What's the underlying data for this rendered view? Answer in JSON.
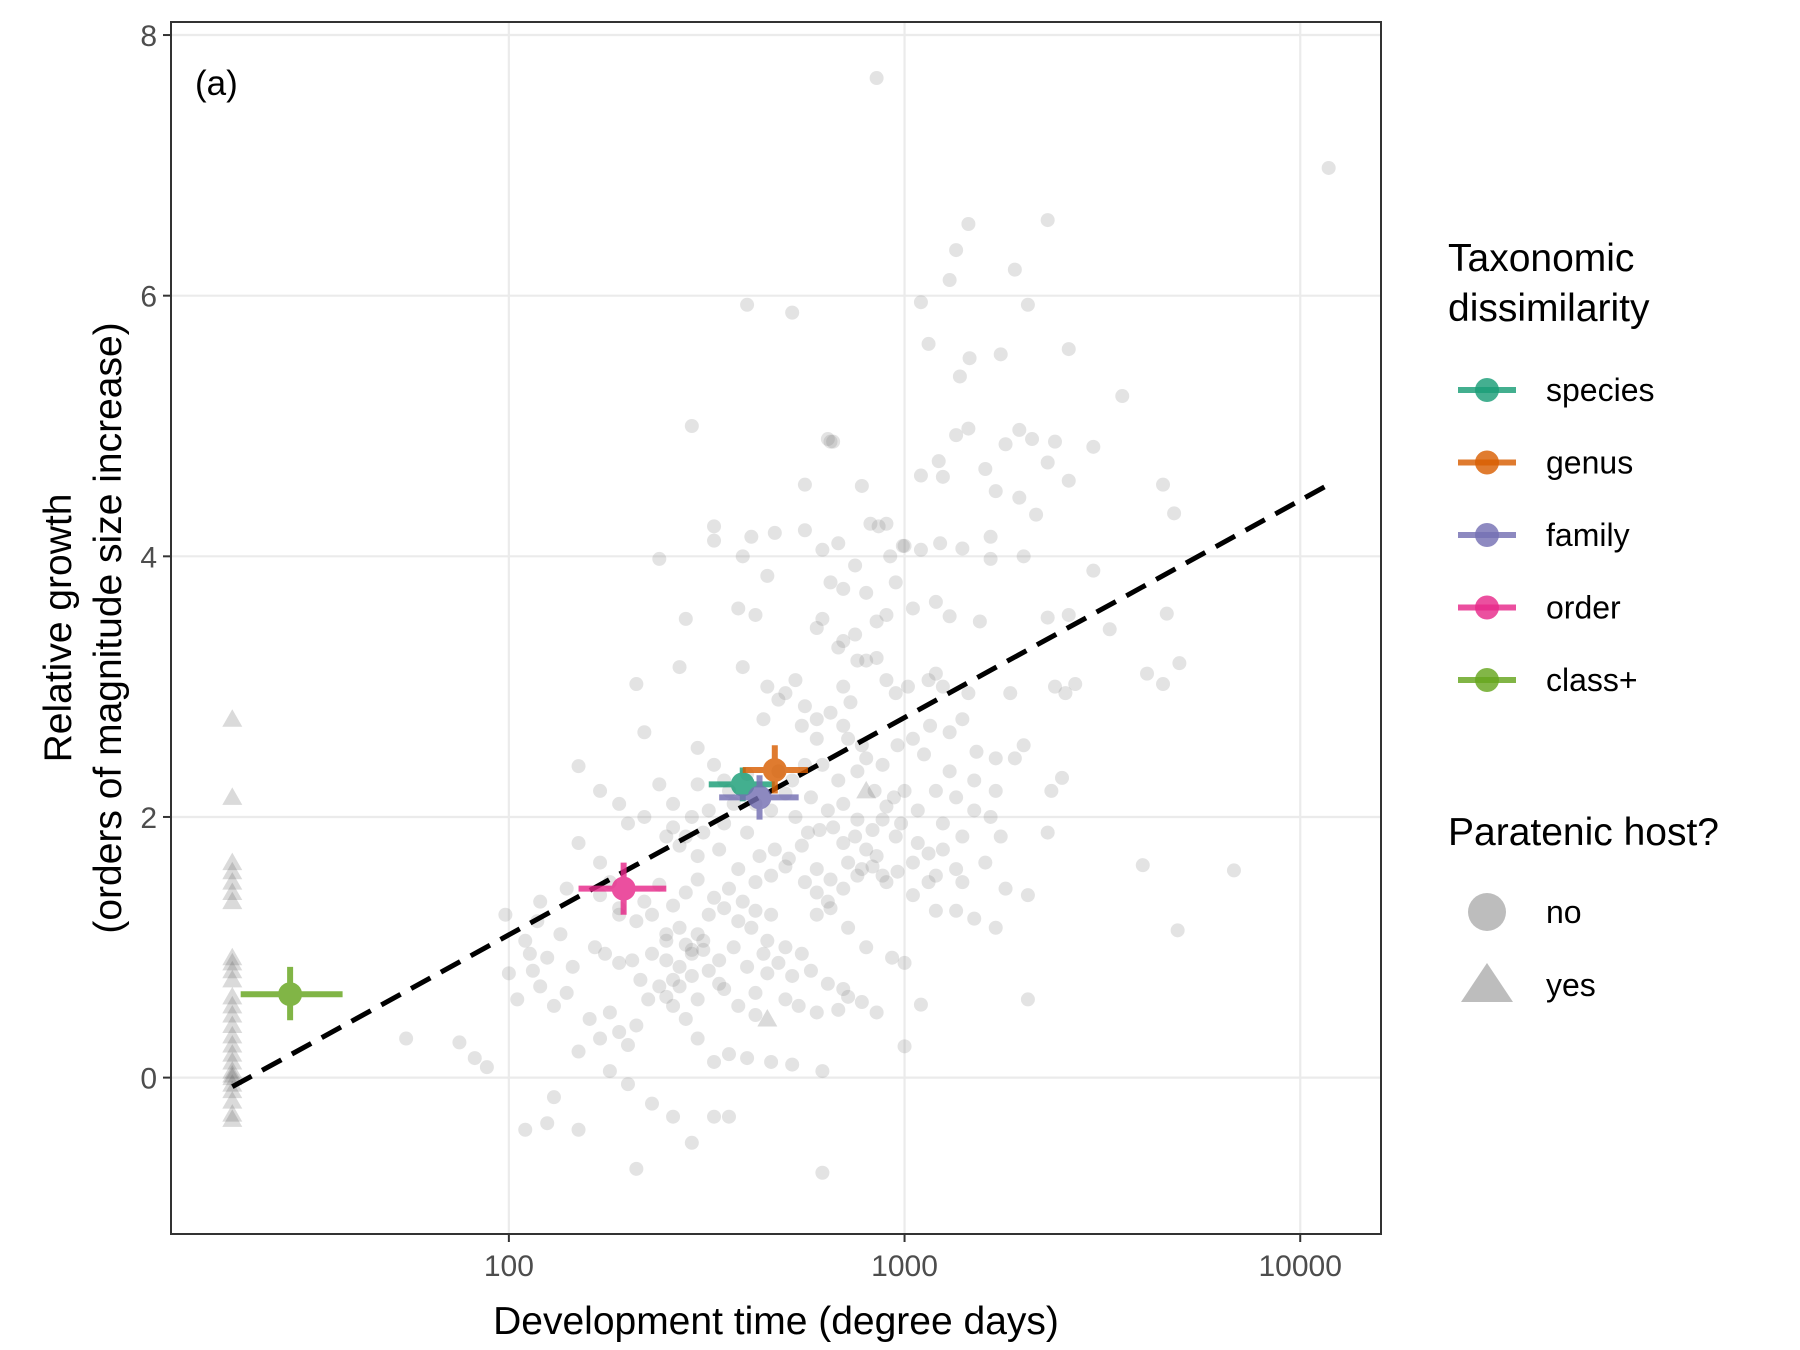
{
  "chart_data": {
    "type": "scatter",
    "panel_label": "(a)",
    "xlabel": "Development time (degree days)",
    "ylabel_line1": "Relative growth",
    "ylabel_line2": "(orders of magnitude size increase)",
    "x_scale": "log10",
    "xlim": [
      14,
      16000
    ],
    "ylim": [
      -1.2,
      8.1
    ],
    "x_ticks": [
      100,
      1000,
      10000
    ],
    "x_tick_labels": [
      "100",
      "1000",
      "10000"
    ],
    "y_ticks": [
      0,
      2,
      4,
      6,
      8
    ],
    "y_tick_labels": [
      "0",
      "2",
      "4",
      "6",
      "8"
    ],
    "grid": true,
    "legend_placement": "right",
    "trend_line": {
      "style": "dashed",
      "color": "#000000",
      "x": [
        20,
        11800
      ],
      "y": [
        -0.07,
        4.55
      ]
    },
    "legend_color": {
      "title_line1": "Taxonomic",
      "title_line2": "dissimilarity",
      "entries": [
        {
          "label": "species",
          "color": "#1b9e77"
        },
        {
          "label": "genus",
          "color": "#d95f02"
        },
        {
          "label": "family",
          "color": "#7570b3"
        },
        {
          "label": "order",
          "color": "#e7298a"
        },
        {
          "label": "class+",
          "color": "#66a61e"
        }
      ]
    },
    "legend_shape": {
      "title": "Paratenic host?",
      "entries": [
        {
          "label": "no",
          "shape": "circle"
        },
        {
          "label": "yes",
          "shape": "triangle"
        }
      ]
    },
    "summary_points": [
      {
        "group": "species",
        "x": 390,
        "y": 2.25,
        "x_lo": 320,
        "x_hi": 470,
        "y_lo": 2.12,
        "y_hi": 2.38
      },
      {
        "group": "genus",
        "x": 470,
        "y": 2.36,
        "x_lo": 390,
        "x_hi": 570,
        "y_lo": 2.18,
        "y_hi": 2.55
      },
      {
        "group": "family",
        "x": 430,
        "y": 2.15,
        "x_lo": 340,
        "x_hi": 540,
        "y_lo": 1.98,
        "y_hi": 2.32
      },
      {
        "group": "order",
        "x": 195,
        "y": 1.45,
        "x_lo": 150,
        "x_hi": 250,
        "y_lo": 1.25,
        "y_hi": 1.65
      },
      {
        "group": "class+",
        "x": 28,
        "y": 0.64,
        "x_lo": 21,
        "x_hi": 38,
        "y_lo": 0.44,
        "y_hi": 0.85
      }
    ],
    "points_paratenic_no": [
      [
        850,
        7.67
      ],
      [
        11800,
        6.98
      ],
      [
        1450,
        6.55
      ],
      [
        2300,
        6.58
      ],
      [
        1350,
        6.35
      ],
      [
        1300,
        6.12
      ],
      [
        1900,
        6.2
      ],
      [
        400,
        5.93
      ],
      [
        520,
        5.87
      ],
      [
        2050,
        5.93
      ],
      [
        1100,
        5.95
      ],
      [
        1150,
        5.63
      ],
      [
        2600,
        5.59
      ],
      [
        1460,
        5.52
      ],
      [
        1750,
        5.55
      ],
      [
        1380,
        5.38
      ],
      [
        3550,
        5.23
      ],
      [
        290,
        5.0
      ],
      [
        650,
        4.88
      ],
      [
        640,
        4.9
      ],
      [
        1350,
        4.93
      ],
      [
        1450,
        4.98
      ],
      [
        1950,
        4.97
      ],
      [
        2100,
        4.9
      ],
      [
        2400,
        4.88
      ],
      [
        3000,
        4.84
      ],
      [
        1800,
        4.86
      ],
      [
        1220,
        4.73
      ],
      [
        2300,
        4.72
      ],
      [
        1600,
        4.67
      ],
      [
        1100,
        4.62
      ],
      [
        1250,
        4.61
      ],
      [
        1700,
        4.5
      ],
      [
        2600,
        4.58
      ],
      [
        4500,
        4.55
      ],
      [
        560,
        4.55
      ],
      [
        780,
        4.54
      ],
      [
        1950,
        4.45
      ],
      [
        820,
        4.25
      ],
      [
        900,
        4.25
      ],
      [
        330,
        4.23
      ],
      [
        410,
        4.15
      ],
      [
        470,
        4.18
      ],
      [
        560,
        4.2
      ],
      [
        1000,
        4.08
      ],
      [
        1100,
        4.05
      ],
      [
        1230,
        4.1
      ],
      [
        1650,
        4.15
      ],
      [
        4800,
        4.33
      ],
      [
        2150,
        4.32
      ],
      [
        680,
        4.1
      ],
      [
        620,
        4.05
      ],
      [
        920,
        4.0
      ],
      [
        330,
        4.12
      ],
      [
        390,
        4.0
      ],
      [
        750,
        3.93
      ],
      [
        1400,
        4.06
      ],
      [
        1650,
        3.98
      ],
      [
        2000,
        4.0
      ],
      [
        3000,
        3.89
      ],
      [
        450,
        3.85
      ],
      [
        800,
        3.72
      ],
      [
        950,
        3.8
      ],
      [
        240,
        3.98
      ],
      [
        650,
        3.8
      ],
      [
        700,
        3.75
      ],
      [
        850,
        3.5
      ],
      [
        900,
        3.55
      ],
      [
        1050,
        3.6
      ],
      [
        1200,
        3.65
      ],
      [
        1300,
        3.54
      ],
      [
        1550,
        3.5
      ],
      [
        2300,
        3.53
      ],
      [
        2600,
        3.55
      ],
      [
        4600,
        3.56
      ],
      [
        3300,
        3.44
      ],
      [
        380,
        3.6
      ],
      [
        420,
        3.55
      ],
      [
        600,
        3.45
      ],
      [
        620,
        3.52
      ],
      [
        680,
        3.3
      ],
      [
        700,
        3.35
      ],
      [
        750,
        3.4
      ],
      [
        760,
        3.2
      ],
      [
        800,
        3.2
      ],
      [
        850,
        3.22
      ],
      [
        900,
        3.05
      ],
      [
        950,
        2.95
      ],
      [
        1020,
        3.0
      ],
      [
        1150,
        3.05
      ],
      [
        1200,
        3.1
      ],
      [
        1250,
        3.0
      ],
      [
        1450,
        2.95
      ],
      [
        1850,
        2.95
      ],
      [
        2400,
        3.0
      ],
      [
        2550,
        2.95
      ],
      [
        2700,
        3.02
      ],
      [
        4100,
        3.1
      ],
      [
        4500,
        3.02
      ],
      [
        4950,
        3.18
      ],
      [
        280,
        3.52
      ],
      [
        270,
        3.15
      ],
      [
        210,
        3.02
      ],
      [
        390,
        3.15
      ],
      [
        450,
        3.0
      ],
      [
        480,
        2.9
      ],
      [
        530,
        3.05
      ],
      [
        560,
        2.85
      ],
      [
        600,
        2.75
      ],
      [
        650,
        2.8
      ],
      [
        700,
        2.7
      ],
      [
        720,
        2.6
      ],
      [
        780,
        2.55
      ],
      [
        800,
        2.45
      ],
      [
        880,
        2.4
      ],
      [
        960,
        2.55
      ],
      [
        1050,
        2.6
      ],
      [
        1120,
        2.48
      ],
      [
        1160,
        2.7
      ],
      [
        1300,
        2.65
      ],
      [
        1400,
        2.75
      ],
      [
        1520,
        2.5
      ],
      [
        1700,
        2.45
      ],
      [
        1900,
        2.45
      ],
      [
        2000,
        2.55
      ],
      [
        2500,
        2.3
      ],
      [
        2350,
        2.2
      ],
      [
        2300,
        1.88
      ],
      [
        220,
        2.65
      ],
      [
        300,
        2.53
      ],
      [
        240,
        2.25
      ],
      [
        260,
        2.1
      ],
      [
        290,
        2.0
      ],
      [
        320,
        2.05
      ],
      [
        360,
        2.2
      ],
      [
        400,
        2.33
      ],
      [
        420,
        2.1
      ],
      [
        460,
        2.05
      ],
      [
        500,
        2.18
      ],
      [
        530,
        2.0
      ],
      [
        570,
        1.88
      ],
      [
        610,
        1.9
      ],
      [
        660,
        1.92
      ],
      [
        700,
        1.8
      ],
      [
        750,
        1.85
      ],
      [
        800,
        1.75
      ],
      [
        850,
        1.7
      ],
      [
        950,
        1.85
      ],
      [
        1080,
        2.05
      ],
      [
        1200,
        2.2
      ],
      [
        1250,
        1.95
      ],
      [
        1350,
        2.15
      ],
      [
        1500,
        2.05
      ],
      [
        1650,
        2.0
      ],
      [
        1750,
        1.85
      ],
      [
        1600,
        1.65
      ],
      [
        1350,
        1.6
      ],
      [
        1200,
        1.55
      ],
      [
        1400,
        1.5
      ],
      [
        1800,
        1.45
      ],
      [
        2050,
        1.4
      ],
      [
        1350,
        1.28
      ],
      [
        1500,
        1.22
      ],
      [
        1700,
        1.15
      ],
      [
        150,
        2.39
      ],
      [
        170,
        2.2
      ],
      [
        190,
        2.1
      ],
      [
        200,
        1.95
      ],
      [
        220,
        2.0
      ],
      [
        250,
        1.85
      ],
      [
        270,
        1.78
      ],
      [
        300,
        1.7
      ],
      [
        340,
        1.75
      ],
      [
        380,
        1.6
      ],
      [
        420,
        1.5
      ],
      [
        460,
        1.55
      ],
      [
        500,
        1.62
      ],
      [
        560,
        1.5
      ],
      [
        600,
        1.42
      ],
      [
        640,
        1.35
      ],
      [
        700,
        1.45
      ],
      [
        760,
        1.55
      ],
      [
        830,
        1.62
      ],
      [
        900,
        1.5
      ],
      [
        960,
        1.58
      ],
      [
        1050,
        1.4
      ],
      [
        1200,
        1.28
      ],
      [
        120,
        1.35
      ],
      [
        140,
        1.45
      ],
      [
        150,
        1.8
      ],
      [
        170,
        1.65
      ],
      [
        180,
        1.5
      ],
      [
        190,
        1.3
      ],
      [
        210,
        1.2
      ],
      [
        230,
        1.25
      ],
      [
        250,
        1.1
      ],
      [
        270,
        1.15
      ],
      [
        290,
        0.98
      ],
      [
        310,
        1.05
      ],
      [
        340,
        0.9
      ],
      [
        370,
        1.0
      ],
      [
        400,
        0.85
      ],
      [
        440,
        0.95
      ],
      [
        480,
        0.88
      ],
      [
        520,
        0.78
      ],
      [
        580,
        0.82
      ],
      [
        640,
        0.72
      ],
      [
        700,
        0.68
      ],
      [
        780,
        0.58
      ],
      [
        850,
        0.5
      ],
      [
        930,
        0.92
      ],
      [
        1000,
        0.88
      ],
      [
        1100,
        0.56
      ],
      [
        2050,
        0.6
      ],
      [
        1000,
        0.24
      ],
      [
        6800,
        1.59
      ],
      [
        4000,
        1.63
      ],
      [
        4900,
        1.13
      ],
      [
        98,
        1.25
      ],
      [
        110,
        1.05
      ],
      [
        115,
        0.82
      ],
      [
        120,
        0.7
      ],
      [
        130,
        0.55
      ],
      [
        140,
        0.65
      ],
      [
        160,
        0.45
      ],
      [
        170,
        0.3
      ],
      [
        180,
        0.5
      ],
      [
        190,
        0.35
      ],
      [
        200,
        0.25
      ],
      [
        210,
        0.4
      ],
      [
        225,
        0.6
      ],
      [
        240,
        0.7
      ],
      [
        260,
        0.55
      ],
      [
        280,
        0.45
      ],
      [
        300,
        0.3
      ],
      [
        330,
        0.12
      ],
      [
        360,
        0.18
      ],
      [
        400,
        0.15
      ],
      [
        460,
        0.12
      ],
      [
        520,
        0.1
      ],
      [
        620,
        0.05
      ],
      [
        150,
        0.2
      ],
      [
        180,
        0.05
      ],
      [
        200,
        -0.05
      ],
      [
        230,
        -0.2
      ],
      [
        260,
        -0.3
      ],
      [
        290,
        -0.5
      ],
      [
        330,
        -0.3
      ],
      [
        360,
        -0.3
      ],
      [
        110,
        -0.4
      ],
      [
        125,
        -0.35
      ],
      [
        150,
        -0.4
      ],
      [
        130,
        -0.15
      ],
      [
        210,
        -0.7
      ],
      [
        620,
        -0.73
      ],
      [
        55,
        0.3
      ],
      [
        75,
        0.27
      ],
      [
        82,
        0.15
      ],
      [
        88,
        0.08
      ],
      [
        100,
        0.8
      ],
      [
        105,
        0.6
      ],
      [
        113,
        0.95
      ],
      [
        118,
        1.2
      ],
      [
        125,
        0.92
      ],
      [
        135,
        1.1
      ],
      [
        145,
        0.85
      ],
      [
        165,
        1.0
      ],
      [
        175,
        0.95
      ],
      [
        190,
        0.88
      ],
      [
        205,
        0.9
      ],
      [
        215,
        0.75
      ],
      [
        230,
        0.95
      ],
      [
        250,
        0.9
      ],
      [
        270,
        0.85
      ],
      [
        290,
        0.95
      ],
      [
        300,
        1.1
      ],
      [
        320,
        1.25
      ],
      [
        350,
        1.3
      ],
      [
        380,
        1.2
      ],
      [
        410,
        1.15
      ],
      [
        450,
        1.05
      ],
      [
        500,
        1.0
      ],
      [
        550,
        0.95
      ],
      [
        600,
        1.25
      ],
      [
        650,
        1.3
      ],
      [
        720,
        1.15
      ],
      [
        800,
        1.0
      ],
      [
        450,
        0.8
      ],
      [
        500,
        0.6
      ],
      [
        540,
        0.55
      ],
      [
        600,
        0.5
      ],
      [
        680,
        0.52
      ],
      [
        720,
        0.62
      ],
      [
        250,
        0.62
      ],
      [
        270,
        0.7
      ],
      [
        300,
        0.6
      ],
      [
        340,
        0.72
      ],
      [
        380,
        0.55
      ],
      [
        420,
        0.65
      ],
      [
        660,
        4.88
      ],
      [
        860,
        4.23
      ],
      [
        990,
        4.08
      ],
      [
        700,
        3.0
      ],
      [
        730,
        2.88
      ],
      [
        600,
        2.6
      ],
      [
        500,
        2.95
      ],
      [
        440,
        2.75
      ],
      [
        550,
        2.7
      ],
      [
        620,
        2.4
      ],
      [
        680,
        2.28
      ],
      [
        760,
        2.35
      ],
      [
        840,
        2.2
      ],
      [
        900,
        2.08
      ],
      [
        980,
        1.95
      ],
      [
        1080,
        1.8
      ],
      [
        1150,
        1.72
      ],
      [
        1250,
        1.75
      ],
      [
        1400,
        1.85
      ],
      [
        560,
        2.4
      ],
      [
        480,
        2.35
      ],
      [
        520,
        2.28
      ],
      [
        580,
        2.15
      ],
      [
        640,
        2.05
      ],
      [
        700,
        2.1
      ],
      [
        760,
        1.98
      ],
      [
        830,
        1.9
      ],
      [
        880,
        1.98
      ],
      [
        940,
        2.15
      ],
      [
        1000,
        2.2
      ],
      [
        1300,
        2.35
      ],
      [
        1500,
        2.28
      ],
      [
        1700,
        2.2
      ],
      [
        330,
        2.4
      ],
      [
        350,
        2.28
      ],
      [
        370,
        2.1
      ],
      [
        300,
        2.25
      ],
      [
        260,
        1.92
      ],
      [
        280,
        1.85
      ],
      [
        310,
        1.88
      ],
      [
        350,
        1.95
      ],
      [
        400,
        1.88
      ],
      [
        430,
        1.7
      ],
      [
        470,
        1.75
      ],
      [
        510,
        1.68
      ],
      [
        550,
        1.78
      ],
      [
        600,
        1.6
      ],
      [
        650,
        1.52
      ],
      [
        720,
        1.65
      ],
      [
        780,
        1.6
      ],
      [
        880,
        1.55
      ],
      [
        1050,
        1.65
      ],
      [
        1150,
        1.5
      ],
      [
        170,
        1.4
      ],
      [
        190,
        1.25
      ],
      [
        220,
        1.35
      ],
      [
        240,
        1.48
      ],
      [
        260,
        1.32
      ],
      [
        280,
        1.42
      ],
      [
        300,
        1.52
      ],
      [
        330,
        1.38
      ],
      [
        360,
        1.45
      ],
      [
        390,
        1.35
      ],
      [
        420,
        1.28
      ],
      [
        460,
        1.25
      ],
      [
        250,
        1.05
      ],
      [
        280,
        1.02
      ],
      [
        310,
        0.98
      ],
      [
        260,
        0.75
      ],
      [
        290,
        0.78
      ],
      [
        320,
        0.82
      ],
      [
        350,
        0.68
      ],
      [
        420,
        0.48
      ]
    ],
    "points_paratenic_yes": [
      [
        20,
        2.75
      ],
      [
        20,
        2.15
      ],
      [
        20,
        1.65
      ],
      [
        20,
        1.58
      ],
      [
        20,
        1.5
      ],
      [
        20,
        1.42
      ],
      [
        20,
        1.35
      ],
      [
        20,
        0.92
      ],
      [
        20,
        0.88
      ],
      [
        20,
        0.82
      ],
      [
        20,
        0.75
      ],
      [
        20,
        0.62
      ],
      [
        20,
        0.55
      ],
      [
        20,
        0.48
      ],
      [
        20,
        0.4
      ],
      [
        20,
        0.32
      ],
      [
        20,
        0.25
      ],
      [
        20,
        0.18
      ],
      [
        20,
        0.12
      ],
      [
        20,
        0.05
      ],
      [
        20,
        0.02
      ],
      [
        20,
        0.0
      ],
      [
        20,
        -0.05
      ],
      [
        20,
        -0.1
      ],
      [
        20,
        -0.18
      ],
      [
        20,
        -0.28
      ],
      [
        20,
        -0.32
      ],
      [
        800,
        2.2
      ],
      [
        450,
        0.45
      ]
    ]
  }
}
